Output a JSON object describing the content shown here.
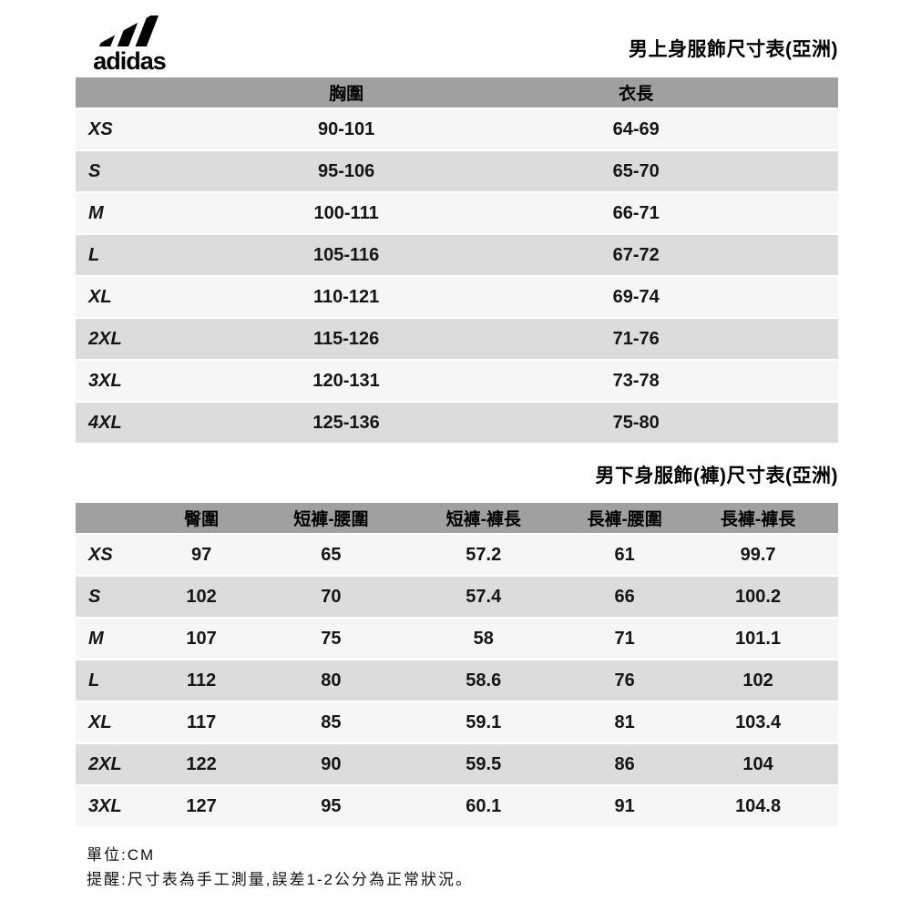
{
  "brand": {
    "wordmark": "adidas"
  },
  "upper_table": {
    "title": "男上身服飾尺寸表(亞洲)",
    "columns": [
      "",
      "胸圍",
      "衣長"
    ],
    "rows": [
      [
        "XS",
        "90-101",
        "64-69"
      ],
      [
        "S",
        "95-106",
        "65-70"
      ],
      [
        "M",
        "100-111",
        "66-71"
      ],
      [
        "L",
        "105-116",
        "67-72"
      ],
      [
        "XL",
        "110-121",
        "69-74"
      ],
      [
        "2XL",
        "115-126",
        "71-76"
      ],
      [
        "3XL",
        "120-131",
        "73-78"
      ],
      [
        "4XL",
        "125-136",
        "75-80"
      ]
    ]
  },
  "lower_table": {
    "title": "男下身服飾(褲)尺寸表(亞洲)",
    "columns": [
      "",
      "臀圍",
      "短褲-腰圍",
      "短褲-褲長",
      "長褲-腰圍",
      "長褲-褲長"
    ],
    "rows": [
      [
        "XS",
        "97",
        "65",
        "57.2",
        "61",
        "99.7"
      ],
      [
        "S",
        "102",
        "70",
        "57.4",
        "66",
        "100.2"
      ],
      [
        "M",
        "107",
        "75",
        "58",
        "71",
        "101.1"
      ],
      [
        "L",
        "112",
        "80",
        "58.6",
        "76",
        "102"
      ],
      [
        "XL",
        "117",
        "85",
        "59.1",
        "81",
        "103.4"
      ],
      [
        "2XL",
        "122",
        "90",
        "59.5",
        "86",
        "104"
      ],
      [
        "3XL",
        "127",
        "95",
        "60.1",
        "91",
        "104.8"
      ]
    ]
  },
  "footer": {
    "unit": "單位:CM",
    "note": "提醒:尺寸表為手工測量,誤差1-2公分為正常狀況。"
  },
  "colors": {
    "header_bg": "#a0a0a0",
    "row_light": "#f6f6f6",
    "row_dark": "#dcdcdc",
    "logo": "#000000"
  }
}
